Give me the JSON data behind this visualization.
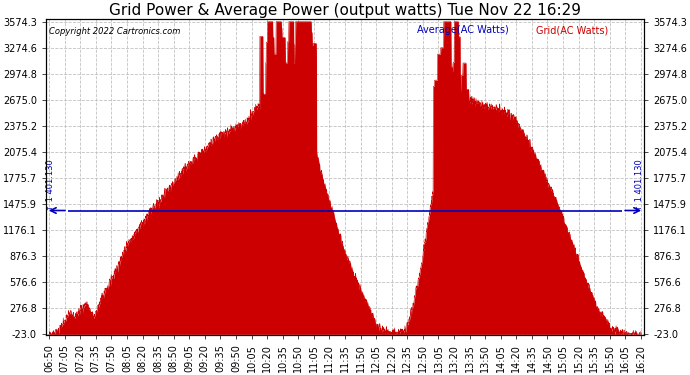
{
  "title": "Grid Power & Average Power (output watts) Tue Nov 22 16:29",
  "copyright": "Copyright 2022 Cartronics.com",
  "legend_avg": "Average(AC Watts)",
  "legend_grid": "Grid(AC Watts)",
  "ymin": -23.0,
  "ymax": 3574.3,
  "yticks": [
    -23.0,
    276.8,
    576.6,
    876.3,
    1176.1,
    1475.9,
    1775.7,
    2075.4,
    2375.2,
    2675.0,
    2974.8,
    3274.6,
    3574.3
  ],
  "average_value": 1401.13,
  "fill_color": "#cc0000",
  "line_color": "#cc0000",
  "avg_line_color": "#0000bb",
  "background_color": "#ffffff",
  "grid_color": "#bbbbbb",
  "title_fontsize": 11,
  "tick_fontsize": 7,
  "legend_avg_color": "#0000bb",
  "legend_grid_color": "#cc0000",
  "time_labels": [
    "06:50",
    "07:05",
    "07:20",
    "07:35",
    "07:50",
    "08:05",
    "08:20",
    "08:35",
    "08:50",
    "09:05",
    "09:20",
    "09:35",
    "09:50",
    "10:05",
    "10:20",
    "10:35",
    "10:50",
    "11:05",
    "11:20",
    "11:35",
    "11:50",
    "12:05",
    "12:20",
    "12:35",
    "12:50",
    "13:05",
    "13:20",
    "13:35",
    "13:50",
    "14:05",
    "14:20",
    "14:35",
    "14:50",
    "15:05",
    "15:20",
    "15:35",
    "15:50",
    "16:05",
    "16:20"
  ]
}
